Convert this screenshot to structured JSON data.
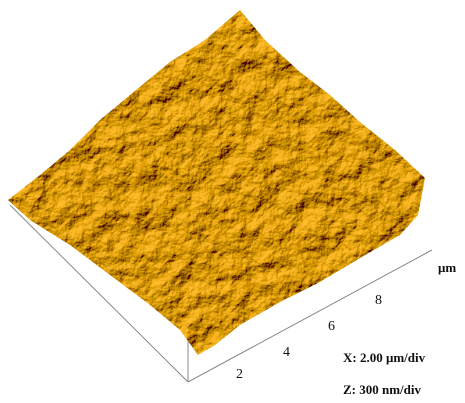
{
  "axis": {
    "ticks": [
      2,
      4,
      6,
      8
    ],
    "unit": "μm"
  },
  "scale": {
    "x": "X: 2.00 μm/div",
    "z": "Z: 300 nm/div"
  }
}
